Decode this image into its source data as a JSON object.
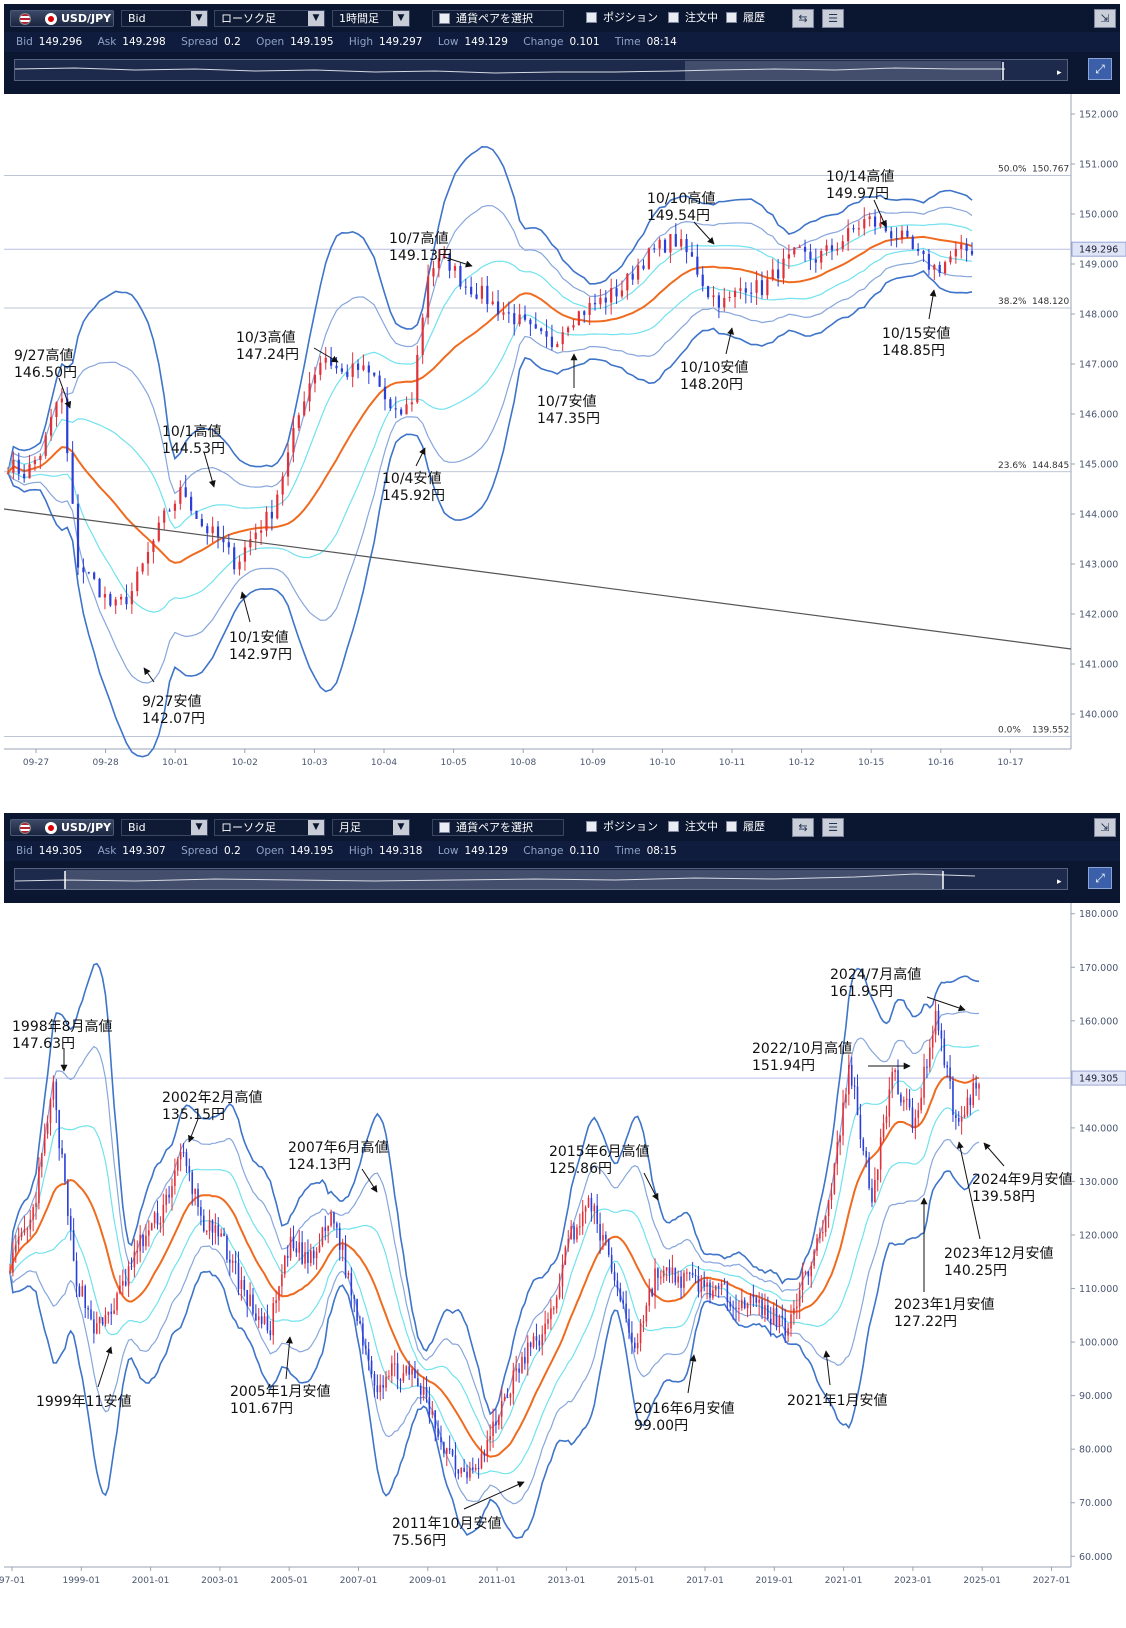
{
  "panels": [
    {
      "toolbar": {
        "pair": "USD/JPY",
        "price_type": "Bid",
        "chart_type": "ローソク足",
        "timeframe": "1時間足",
        "pair_select": "通貨ペアを選択",
        "position": "ポジション",
        "orders": "注文中",
        "history": "履歴"
      },
      "info": {
        "bid_label": "Bid",
        "bid": "149.296",
        "ask_label": "Ask",
        "ask": "149.298",
        "spread_label": "Spread",
        "spread": "0.2",
        "open_label": "Open",
        "open": "149.195",
        "high_label": "High",
        "high": "149.297",
        "low_label": "Low",
        "low": "149.129",
        "change_label": "Change",
        "change": "0.101",
        "time_label": "Time",
        "time": "08:14"
      },
      "current_price_label": "149.296",
      "chart_data": {
        "type": "candlestick",
        "timeframe": "1時間足",
        "x": [
          "09-27",
          "09-28",
          "10-01",
          "10-02",
          "10-03",
          "10-04",
          "10-05",
          "10-08",
          "10-09",
          "10-10",
          "10-11",
          "10-12",
          "10-15",
          "10-16",
          "10-17"
        ],
        "y_ticks": [
          "152.000",
          "151.000",
          "150.000",
          "149.000",
          "148.000",
          "147.000",
          "146.000",
          "145.000",
          "144.000",
          "143.000",
          "142.000",
          "141.000",
          "140.000"
        ],
        "ylim": [
          139.3,
          152.4
        ],
        "current_price": 149.296,
        "indicators": [
          "Bollinger Bands",
          "Moving Average"
        ],
        "fibonacci": [
          {
            "label": "50.0%",
            "value": "150.767"
          },
          {
            "label": "38.2%",
            "value": "148.120"
          },
          {
            "label": "23.6%",
            "value": "144.845"
          },
          {
            "label": "0.0%",
            "value": "139.552"
          }
        ],
        "trendline": [
          {
            "x": "09-27",
            "y": 144.1
          },
          {
            "x": "10-17",
            "y": 141.3
          }
        ],
        "annotations": [
          {
            "line1": "9/27高値",
            "line2": "146.50円"
          },
          {
            "line1": "9/27安値",
            "line2": "142.07円"
          },
          {
            "line1": "10/1高値",
            "line2": "144.53円"
          },
          {
            "line1": "10/1安値",
            "line2": "142.97円"
          },
          {
            "line1": "10/3高値",
            "line2": "147.24円"
          },
          {
            "line1": "10/4安値",
            "line2": "145.92円"
          },
          {
            "line1": "10/7高値",
            "line2": "149.13円"
          },
          {
            "line1": "10/7安値",
            "line2": "147.35円"
          },
          {
            "line1": "10/10高値",
            "line2": "149.54円"
          },
          {
            "line1": "10/10安値",
            "line2": "148.20円"
          },
          {
            "line1": "10/14高値",
            "line2": "149.97円"
          },
          {
            "line1": "10/15安値",
            "line2": "148.85円"
          }
        ],
        "series": [
          {
            "name": "",
            "points": [
              [
                "09-27",
                145.0
              ],
              [
                "09-27",
                144.8
              ],
              [
                "09-27",
                145.3
              ],
              [
                "09-27",
                146.5
              ],
              [
                "09-28",
                143.0
              ],
              [
                "09-28",
                142.6
              ],
              [
                "09-28",
                142.1
              ],
              [
                "09-28",
                142.4
              ],
              [
                "10-01",
                143.2
              ],
              [
                "10-01",
                144.0
              ],
              [
                "10-01",
                144.5
              ],
              [
                "10-01",
                143.8
              ],
              [
                "10-02",
                143.5
              ],
              [
                "10-02",
                143.0
              ],
              [
                "10-02",
                143.6
              ],
              [
                "10-02",
                144.0
              ],
              [
                "10-03",
                145.2
              ],
              [
                "10-03",
                146.5
              ],
              [
                "10-03",
                147.2
              ],
              [
                "10-03",
                146.8
              ],
              [
                "10-04",
                146.9
              ],
              [
                "10-04",
                146.7
              ],
              [
                "10-04",
                145.9
              ],
              [
                "10-04",
                146.2
              ],
              [
                "10-05",
                148.9
              ],
              [
                "10-05",
                149.1
              ],
              [
                "10-05",
                148.6
              ],
              [
                "10-05",
                148.4
              ],
              [
                "10-08",
                148.1
              ],
              [
                "10-08",
                147.9
              ],
              [
                "10-08",
                147.6
              ],
              [
                "10-08",
                147.4
              ],
              [
                "10-09",
                147.9
              ],
              [
                "10-09",
                148.1
              ],
              [
                "10-09",
                148.3
              ],
              [
                "10-09",
                148.5
              ],
              [
                "10-10",
                149.0
              ],
              [
                "10-10",
                149.3
              ],
              [
                "10-10",
                149.5
              ],
              [
                "10-10",
                149.1
              ],
              [
                "10-11",
                148.4
              ],
              [
                "10-11",
                148.2
              ],
              [
                "10-11",
                148.6
              ],
              [
                "10-11",
                148.5
              ],
              [
                "10-12",
                148.9
              ],
              [
                "10-12",
                149.2
              ],
              [
                "10-12",
                149.1
              ],
              [
                "10-12",
                149.3
              ],
              [
                "10-15",
                149.6
              ],
              [
                "10-15",
                149.9
              ],
              [
                "10-15",
                149.7
              ],
              [
                "10-15",
                149.5
              ],
              [
                "10-16",
                149.1
              ],
              [
                "10-16",
                148.9
              ],
              [
                "10-16",
                149.2
              ],
              [
                "10-16",
                149.3
              ]
            ]
          }
        ]
      }
    },
    {
      "toolbar": {
        "pair": "USD/JPY",
        "price_type": "Bid",
        "chart_type": "ローソク足",
        "timeframe": "月足",
        "pair_select": "通貨ペアを選択",
        "position": "ポジション",
        "orders": "注文中",
        "history": "履歴"
      },
      "info": {
        "bid_label": "Bid",
        "bid": "149.305",
        "ask_label": "Ask",
        "ask": "149.307",
        "spread_label": "Spread",
        "spread": "0.2",
        "open_label": "Open",
        "open": "149.195",
        "high_label": "High",
        "high": "149.318",
        "low_label": "Low",
        "low": "149.129",
        "change_label": "Change",
        "change": "0.110",
        "time_label": "Time",
        "time": "08:15"
      },
      "current_price_label": "149.305",
      "chart_data": {
        "type": "candlestick",
        "timeframe": "月足",
        "x": [
          "97-01",
          "1999-01",
          "2001-01",
          "2003-01",
          "2005-01",
          "2007-01",
          "2009-01",
          "2011-01",
          "2013-01",
          "2015-01",
          "2017-01",
          "2019-01",
          "2021-01",
          "2023-01",
          "2025-01",
          "2027-01"
        ],
        "y_ticks": [
          "180.000",
          "170.000",
          "160.000",
          "150.000",
          "140.000",
          "130.000",
          "120.000",
          "110.000",
          "100.000",
          "90.000",
          "80.000",
          "70.000",
          "60.000"
        ],
        "ylim": [
          58,
          182
        ],
        "current_price": 149.305,
        "indicators": [
          "Bollinger Bands",
          "Moving Average"
        ],
        "annotations": [
          {
            "line1": "1998年8月高値",
            "line2": "147.63円"
          },
          {
            "line1": "1999年11安値",
            "line2": ""
          },
          {
            "line1": "2002年2月高値",
            "line2": "135.15円"
          },
          {
            "line1": "2005年1月安値",
            "line2": "101.67円"
          },
          {
            "line1": "2007年6月高値",
            "line2": "124.13円"
          },
          {
            "line1": "2011年10月安値",
            "line2": "75.56円"
          },
          {
            "line1": "2015年6月高値",
            "line2": "125.86円"
          },
          {
            "line1": "2016年6月安値",
            "line2": "99.00円"
          },
          {
            "line1": "2021年1月安値",
            "line2": ""
          },
          {
            "line1": "2022/10月高値",
            "line2": "151.94円"
          },
          {
            "line1": "2023年1月安値",
            "line2": "127.22円"
          },
          {
            "line1": "2023年12月安値",
            "line2": "140.25円"
          },
          {
            "line1": "2024/7月高値",
            "line2": "161.95円"
          },
          {
            "line1": "2024年9月安値",
            "line2": "139.58円"
          }
        ],
        "series": [
          {
            "name": "",
            "points": [
              [
                1997.0,
                115
              ],
              [
                1997.5,
                122
              ],
              [
                1998.6,
                147.6
              ],
              [
                1999.0,
                113
              ],
              [
                1999.9,
                102
              ],
              [
                2000.5,
                108
              ],
              [
                2001.0,
                118
              ],
              [
                2001.5,
                124
              ],
              [
                2002.1,
                135.2
              ],
              [
                2002.8,
                122
              ],
              [
                2003.5,
                118
              ],
              [
                2004.2,
                108
              ],
              [
                2005.0,
                101.7
              ],
              [
                2005.8,
                118
              ],
              [
                2006.5,
                115
              ],
              [
                2007.5,
                124.1
              ],
              [
                2008.0,
                107
              ],
              [
                2008.8,
                92
              ],
              [
                2009.5,
                95
              ],
              [
                2010.3,
                92
              ],
              [
                2010.9,
                82
              ],
              [
                2011.8,
                75.6
              ],
              [
                2012.5,
                79
              ],
              [
                2013.0,
                90
              ],
              [
                2013.5,
                98
              ],
              [
                2014.5,
                103
              ],
              [
                2015.0,
                120
              ],
              [
                2015.5,
                125.9
              ],
              [
                2016.0,
                113
              ],
              [
                2016.5,
                99.0
              ],
              [
                2017.0,
                113
              ],
              [
                2017.8,
                112
              ],
              [
                2018.5,
                111
              ],
              [
                2019.0,
                109
              ],
              [
                2019.8,
                108
              ],
              [
                2020.5,
                106
              ],
              [
                2021.0,
                103
              ],
              [
                2021.7,
                113
              ],
              [
                2022.3,
                125
              ],
              [
                2022.8,
                151.9
              ],
              [
                2023.0,
                127.2
              ],
              [
                2023.8,
                150
              ],
              [
                2023.95,
                140.3
              ],
              [
                2024.5,
                161.9
              ],
              [
                2024.7,
                139.6
              ],
              [
                2024.9,
                150
              ]
            ]
          }
        ]
      }
    }
  ]
}
